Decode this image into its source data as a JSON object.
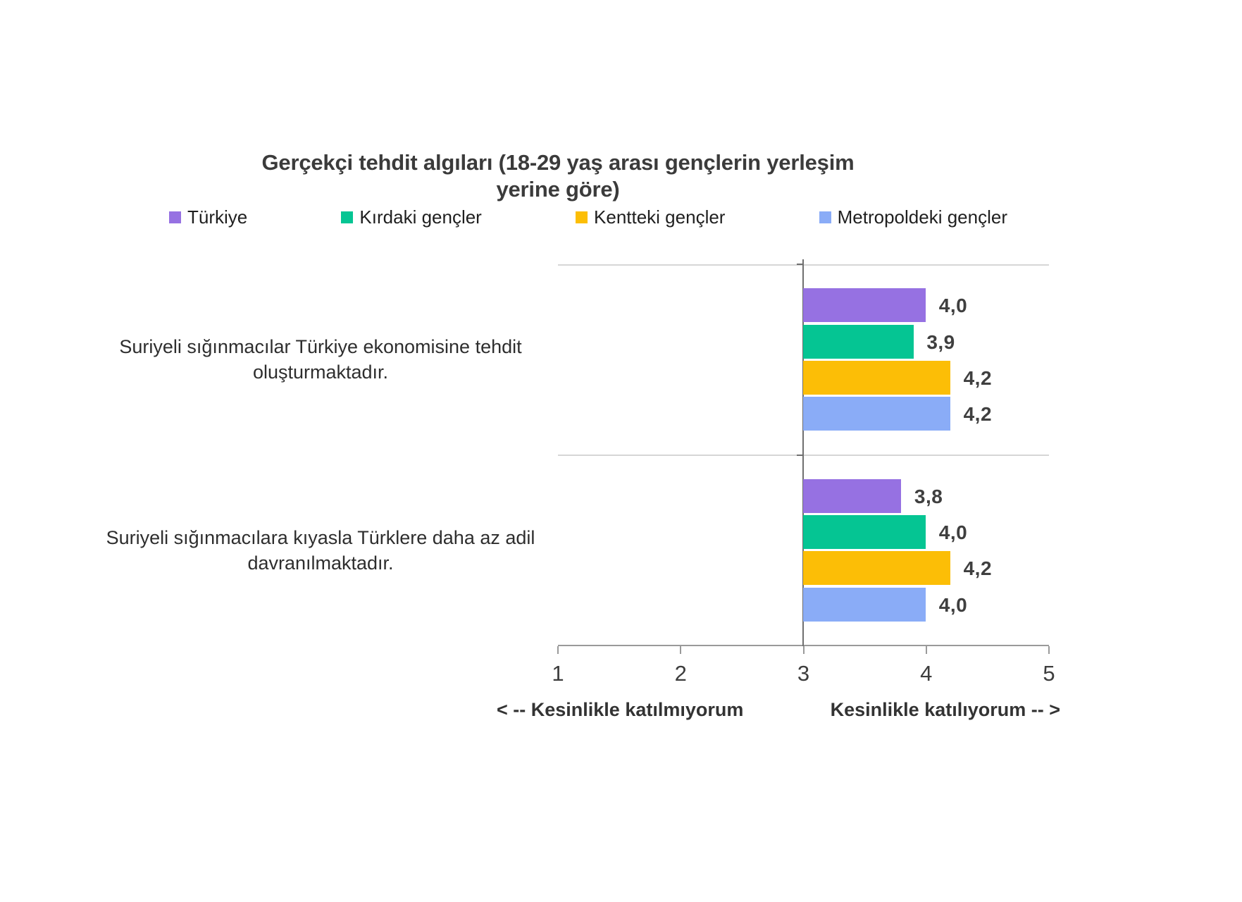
{
  "chart_data": {
    "type": "bar",
    "orientation": "horizontal",
    "title": "Gerçekçi tehdit algıları (18-29 yaş arası gençlerin yerleşim yerine göre)",
    "legend_position": "top",
    "grid": "category separator lines, value axis at bottom",
    "categories": [
      "Suriyeli sığınmacılar Türkiye ekonomisine tehdit oluşturmaktadır.",
      "Suriyeli sığınmacılara kıyasla Türklere daha az adil davranılmaktadır."
    ],
    "series": [
      {
        "name": "Türkiye",
        "color": "#9671E2",
        "values": [
          4.0,
          3.8
        ],
        "value_labels": [
          "4,0",
          "3,8"
        ]
      },
      {
        "name": "Kırdaki gençler",
        "color": "#05C593",
        "values": [
          3.9,
          4.0
        ],
        "value_labels": [
          "3,9",
          "4,0"
        ]
      },
      {
        "name": "Kentteki gençler",
        "color": "#FCBE06",
        "values": [
          4.2,
          4.2
        ],
        "value_labels": [
          "4,2",
          "4,2"
        ]
      },
      {
        "name": "Metropoldeki gençler",
        "color": "#8AACF7",
        "values": [
          4.2,
          4.0
        ],
        "value_labels": [
          "4,2",
          "4,0"
        ]
      }
    ],
    "xlim": [
      1,
      5
    ],
    "x_ticks": [
      "1",
      "2",
      "3",
      "4",
      "5"
    ],
    "axis_crosses_at": 3,
    "x_axis_caption_left": "< -- Kesinlikle katılmıyorum",
    "x_axis_caption_right": "Kesinlikle katılıyorum -- >",
    "value_label_color": "#3f3f3f",
    "axis_line_color": "#9a9a9a",
    "separator_line_color": "#d6d6d6",
    "category_axis_line_color": "#6f6f6f"
  }
}
